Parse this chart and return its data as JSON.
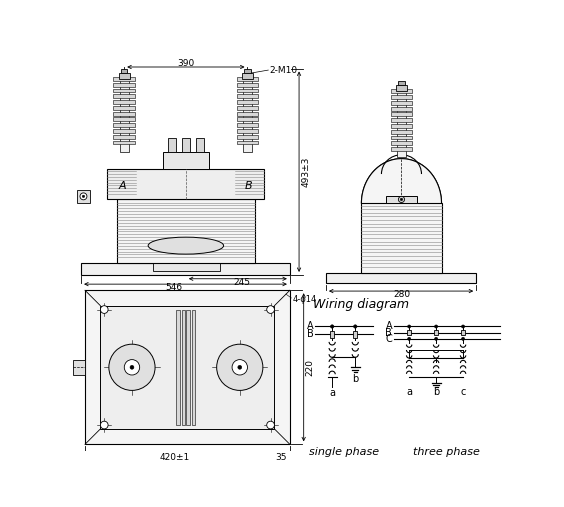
{
  "bg_color": "#ffffff",
  "line_color": "#000000",
  "annotations": {
    "top_width": "390",
    "bolt_label": "2-M10",
    "height_label": "493±3",
    "base_width1": "546",
    "base_width2": "245",
    "side_width": "280",
    "hole_label": "4-φ14",
    "bottom_width": "420±1",
    "bottom_right": "35",
    "height_bottom": "220",
    "label_A": "A",
    "label_B": "B",
    "wiring_title": "Wiring diagram",
    "single_phase": "single phase",
    "three_phase": "three phase"
  }
}
